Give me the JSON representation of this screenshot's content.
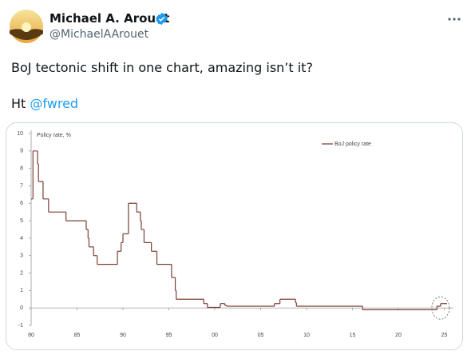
{
  "tweet": {
    "name": "Michael A. Arouet",
    "handle": "@MichaelAArouet",
    "text": "BoJ tectonic shift in one chart, amazing isn’t it?",
    "ht": "Ht",
    "mention": "@fwred"
  },
  "chart_data": {
    "type": "step",
    "y_label": "Policy rate, %",
    "x": [
      1980.0,
      1980.2,
      1980.7,
      1980.8,
      1981.3,
      1981.9,
      1983.8,
      1986.0,
      1986.2,
      1986.3,
      1986.8,
      1987.2,
      1989.4,
      1989.8,
      1990.0,
      1990.6,
      1991.5,
      1991.9,
      1992.0,
      1992.3,
      1993.1,
      1993.7,
      1995.3,
      1995.7,
      1995.8,
      1998.8,
      1999.2,
      2000.6,
      2001.1,
      2001.3,
      2006.5,
      2007.1,
      2008.8,
      2008.9,
      2016.1,
      2024.2,
      2024.6
    ],
    "series": [
      {
        "name": "BoJ policy rate",
        "color": "#7b3f35",
        "values": [
          6.25,
          9.0,
          8.25,
          7.25,
          6.25,
          5.5,
          5.0,
          4.5,
          4.0,
          3.5,
          3.0,
          2.5,
          3.25,
          3.75,
          4.25,
          6.0,
          5.5,
          5.0,
          4.5,
          3.75,
          3.25,
          2.5,
          1.75,
          1.0,
          0.5,
          0.25,
          0.03,
          0.25,
          0.15,
          0.1,
          0.25,
          0.5,
          0.3,
          0.1,
          -0.1,
          0.1,
          0.25
        ]
      }
    ],
    "xlim": [
      1980,
      2026
    ],
    "ylim": [
      -1,
      10
    ],
    "xticks": [
      {
        "value": 1980,
        "label": "80"
      },
      {
        "value": 1985,
        "label": "85"
      },
      {
        "value": 1990,
        "label": "90"
      },
      {
        "value": 1995,
        "label": "95"
      },
      {
        "value": 2000,
        "label": "00"
      },
      {
        "value": 2005,
        "label": "05"
      },
      {
        "value": 2010,
        "label": "10"
      },
      {
        "value": 2015,
        "label": "15"
      },
      {
        "value": 2020,
        "label": "20"
      },
      {
        "value": 2025,
        "label": "25"
      }
    ],
    "yticks": [
      -1,
      0,
      1,
      2,
      3,
      4,
      5,
      6,
      7,
      8,
      9,
      10
    ],
    "legend": "top-right"
  }
}
